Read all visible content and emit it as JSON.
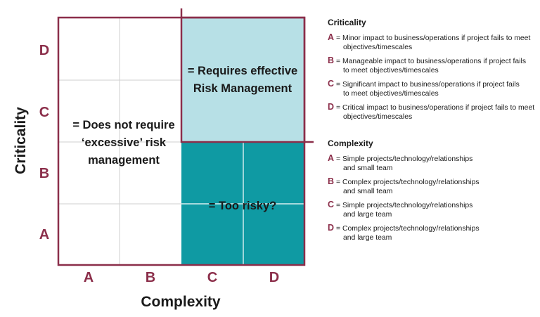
{
  "matrix": {
    "y_axis_label": "Criticality",
    "x_axis_label": "Complexity",
    "y_ticks": [
      "D",
      "C",
      "B",
      "A"
    ],
    "x_ticks": [
      "A",
      "B",
      "C",
      "D"
    ],
    "regions": {
      "low_risk": [
        "= Does not require",
        "‘excessive’ risk",
        "management"
      ],
      "risk_management": [
        "= Requires effective",
        "Risk Management"
      ],
      "too_risky": [
        "= Too risky?"
      ]
    },
    "colors": {
      "accent": "#8b2e4a",
      "light_teal": "#b7e0e6",
      "dark_teal": "#0f9aa3",
      "grid": "#cfcfcf"
    }
  },
  "legend": {
    "criticality": {
      "title": "Criticality",
      "items": [
        {
          "key": "A",
          "lines": [
            "= Minor impact to business/operations if project fails to meet",
            "objectives/timescales"
          ]
        },
        {
          "key": "B",
          "lines": [
            "= Manageable impact to business/operations if project fails",
            "to meet objectives/timescales"
          ]
        },
        {
          "key": "C",
          "lines": [
            "= Significant impact to business/operations if project fails",
            "to meet objectives/timescales"
          ]
        },
        {
          "key": "D",
          "lines": [
            "= Critical impact to business/operations if project fails to meet",
            "objectives/timescales"
          ]
        }
      ]
    },
    "complexity": {
      "title": "Complexity",
      "items": [
        {
          "key": "A",
          "lines": [
            "= Simple projects/technology/relationships",
            "and small team"
          ]
        },
        {
          "key": "B",
          "lines": [
            "= Complex projects/technology/relationships",
            "and small team"
          ]
        },
        {
          "key": "C",
          "lines": [
            "= Simple projects/technology/relationships",
            "and large team"
          ]
        },
        {
          "key": "D",
          "lines": [
            "= Complex projects/technology/relationships",
            "and large team"
          ]
        }
      ]
    }
  }
}
